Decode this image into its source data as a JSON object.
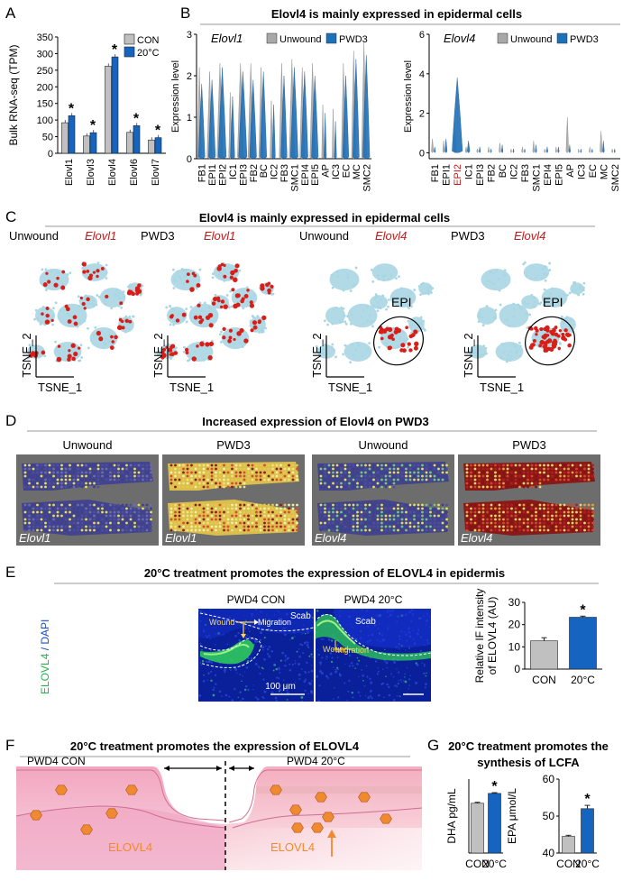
{
  "figure": {
    "panelA": {
      "letter": "A"
    },
    "panelB": {
      "letter": "B",
      "title": "Elovl4 is mainly expressed in epidermal cells"
    },
    "panelC": {
      "letter": "C",
      "title": "Elovl4 is mainly expressed in epidermal cells",
      "xaxis": "TSNE_1",
      "yaxis": "TSNE_2",
      "epi_label": "EPI",
      "maps": [
        {
          "cond": "Unwound",
          "gene": "Elovl1"
        },
        {
          "cond": "PWD3",
          "gene": "Elovl1"
        },
        {
          "cond": "Unwound",
          "gene": "Elovl4"
        },
        {
          "cond": "PWD3",
          "gene": "Elovl4"
        }
      ]
    },
    "panelD": {
      "letter": "D",
      "title": "Increased expression of Elovl4 on PWD3",
      "tiles": [
        {
          "cond": "Unwound",
          "gene": "Elovl1"
        },
        {
          "cond": "PWD3",
          "gene": "Elovl1"
        },
        {
          "cond": "Unwound",
          "gene": "Elovl4"
        },
        {
          "cond": "PWD3",
          "gene": "Elovl4"
        }
      ]
    },
    "panelE": {
      "letter": "E",
      "title": "20°C treatment promotes the expression of ELOVL4 in epidermis",
      "img_left_title": "PWD4 CON",
      "img_right_title": "PWD4 20°C",
      "scab": "Scab",
      "wound": "Wound",
      "migration": "Migration",
      "scalebar": "100 μm",
      "side_label_a": "ELOVL4",
      "side_label_b": " / DAPI"
    },
    "panelF": {
      "letter": "F",
      "title": "20°C treatment promotes the expression of ELOVL4",
      "left_label": "PWD4 CON",
      "right_label": "PWD4 20°C",
      "enzyme": "ELOVL4"
    },
    "panelG": {
      "letter": "G",
      "title_line1": "20°C treatment promotes the",
      "title_line2": "synthesis of LCFA"
    }
  },
  "colors": {
    "con": "#c0c0c0",
    "treated": "#1565c0",
    "unwound_violin": "#a8a8a8",
    "pwd3_violin": "#1e6fb8",
    "tsne_bg": "#a9d6e3",
    "tsne_dot": "#d91e18",
    "gene_red": "#c41a1a",
    "orange": "#f08a30"
  },
  "chart_data": [
    {
      "id": "A",
      "type": "bar",
      "ylabel": "Bulk RNA-seq (TPM)",
      "ylim": [
        0,
        350
      ],
      "yticks": [
        "0",
        "50",
        "100",
        "150",
        "200",
        "250",
        "300",
        "350"
      ],
      "categories": [
        "Elovl1",
        "Elovl3",
        "Elovl4",
        "Elovl6",
        "Elovl7"
      ],
      "series": [
        {
          "name": "CON",
          "values": [
            92,
            52,
            262,
            63,
            40
          ]
        },
        {
          "name": "20°C",
          "values": [
            113,
            62,
            290,
            83,
            47
          ]
        }
      ],
      "significance": "*",
      "legend": "top-right"
    },
    {
      "id": "B1",
      "type": "violin",
      "title": "Elovl1",
      "ylabel": "Expression level",
      "ylim": [
        0,
        3
      ],
      "yticks": [
        "0",
        "1",
        "2",
        "3"
      ],
      "categories": [
        "FB1",
        "EPI1",
        "EPI2",
        "IC1",
        "EPI3",
        "FB2",
        "BC",
        "IC2",
        "FB3",
        "SMC1",
        "EPI4",
        "EPI5",
        "AP",
        "IC3",
        "EC",
        "MC",
        "SMC2"
      ],
      "series": [
        {
          "name": "Unwound",
          "values": [
            2.2,
            2.1,
            2.3,
            1.6,
            2.3,
            2.3,
            2.2,
            1.4,
            2.3,
            2.4,
            2.2,
            2.3,
            1.3,
            1.2,
            2.3,
            2.6,
            2.8
          ]
        },
        {
          "name": "PWD3",
          "values": [
            1.8,
            1.9,
            2.2,
            1.5,
            2.1,
            1.9,
            2.1,
            1.3,
            2.0,
            2.2,
            2.1,
            2.0,
            1.1,
            0.9,
            2.0,
            2.4,
            2.5
          ]
        }
      ],
      "legend": "top"
    },
    {
      "id": "B2",
      "type": "violin",
      "title": "Elovl4",
      "ylabel": "Expression level",
      "ylim": [
        -0.3,
        6
      ],
      "yticks": [
        "0",
        "2",
        "4",
        "6"
      ],
      "categories": [
        "FB1",
        "EPI1",
        "EPI2",
        "IC1",
        "EPI3",
        "FB2",
        "BC",
        "IC2",
        "FB3",
        "SMC1",
        "EPI4",
        "EPI5",
        "AP",
        "IC3",
        "EC",
        "MC",
        "SMC2"
      ],
      "highlight": "EPI2",
      "series": [
        {
          "name": "Unwound",
          "values": [
            0.7,
            0.6,
            1.1,
            0.3,
            0.2,
            0.3,
            0.5,
            0.2,
            0.3,
            0.6,
            0.2,
            0.3,
            1.8,
            0.2,
            0.3,
            1.1,
            0.2
          ]
        },
        {
          "name": "PWD3",
          "values": [
            0.3,
            0.7,
            3.8,
            0.6,
            0.3,
            0.2,
            0.4,
            0.2,
            0.2,
            0.4,
            0.3,
            0.3,
            0.4,
            0.2,
            0.2,
            0.6,
            0.2
          ]
        }
      ],
      "legend": "top"
    },
    {
      "id": "E",
      "type": "bar",
      "ylabel": "Relative IF intensity of ELOVL4 (AU)",
      "ylim": [
        0,
        30
      ],
      "yticks": [
        "0",
        "10",
        "20",
        "30"
      ],
      "categories": [
        "CON",
        "20°C"
      ],
      "values": [
        12.7,
        23.3
      ],
      "errors": [
        1.4,
        0.5
      ],
      "significance": "*"
    },
    {
      "id": "G1",
      "type": "bar",
      "ylabel": "DHA pg/mL",
      "ylim": [
        0,
        30
      ],
      "categories": [
        "CON",
        "20°C"
      ],
      "values": [
        20.2,
        24.2
      ],
      "errors": [
        0.4,
        0.3
      ],
      "significance": "*"
    },
    {
      "id": "G2",
      "type": "bar",
      "ylabel": "EPA μmol/L",
      "ylim": [
        40,
        60
      ],
      "yticks": [
        "40",
        "50",
        "60"
      ],
      "categories": [
        "CON",
        "20°C"
      ],
      "values": [
        44.5,
        52
      ],
      "errors": [
        0.3,
        0.9
      ],
      "significance": "*"
    }
  ]
}
